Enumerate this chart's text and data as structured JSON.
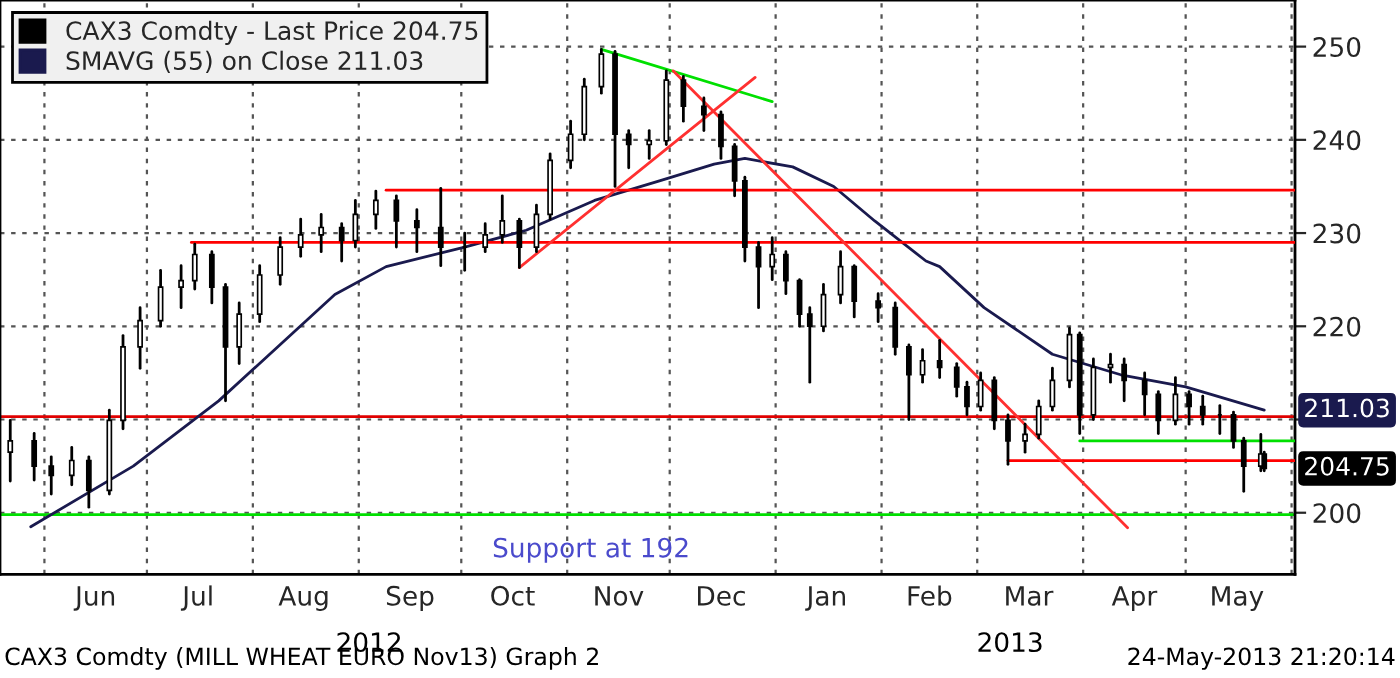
{
  "chart_data": {
    "type": "candlestick",
    "xlim": [
      "2012-05-19",
      "2013-06-02"
    ],
    "xticks": [
      {
        "value": "2012-06-01",
        "label": null
      },
      {
        "value": "2012-06-16",
        "label": "Jun"
      },
      {
        "value": "2012-07-01",
        "label": null
      },
      {
        "value": "2012-07-16",
        "label": "Jul"
      },
      {
        "value": "2012-08-01",
        "label": null
      },
      {
        "value": "2012-08-16",
        "label": "Aug"
      },
      {
        "value": "2012-09-01",
        "label": null
      },
      {
        "value": "2012-09-16",
        "label": "Sep"
      },
      {
        "value": "2012-10-01",
        "label": null
      },
      {
        "value": "2012-10-16",
        "label": "Oct"
      },
      {
        "value": "2012-11-01",
        "label": null
      },
      {
        "value": "2012-11-16",
        "label": "Nov"
      },
      {
        "value": "2012-12-01",
        "label": null
      },
      {
        "value": "2012-12-16",
        "label": "Dec"
      },
      {
        "value": "2013-01-01",
        "label": null
      },
      {
        "value": "2013-01-16",
        "label": "Jan"
      },
      {
        "value": "2013-02-01",
        "label": null
      },
      {
        "value": "2013-02-15",
        "label": "Feb"
      },
      {
        "value": "2013-03-01",
        "label": null
      },
      {
        "value": "2013-03-16",
        "label": "Mar"
      },
      {
        "value": "2013-04-01",
        "label": null
      },
      {
        "value": "2013-04-16",
        "label": "Apr"
      },
      {
        "value": "2013-05-01",
        "label": null
      },
      {
        "value": "2013-05-16",
        "label": "May"
      },
      {
        "value": "2013-06-01",
        "label": null
      }
    ],
    "ylim": [
      193.4,
      255
    ],
    "yticks": [
      200,
      {
        "value": 210,
        "label": null
      },
      220,
      230,
      240,
      250
    ],
    "grid": true,
    "legend": "top left",
    "series": [
      {
        "name": "CAX3 Comdty - Last Price 204.75",
        "color": "#000000",
        "x": [
          "2012-05-22",
          "2012-05-29",
          "2012-06-03",
          "2012-06-09",
          "2012-06-14",
          "2012-06-20",
          "2012-06-24",
          "2012-06-29",
          "2012-07-05",
          "2012-07-11",
          "2012-07-15",
          "2012-07-20",
          "2012-07-24",
          "2012-07-28",
          "2012-08-03",
          "2012-08-09",
          "2012-08-15",
          "2012-08-21",
          "2012-08-27",
          "2012-08-31",
          "2012-09-06",
          "2012-09-12",
          "2012-09-18",
          "2012-09-25",
          "2012-10-02",
          "2012-10-08",
          "2012-10-13",
          "2012-10-18",
          "2012-10-23",
          "2012-10-27",
          "2012-11-02",
          "2012-11-06",
          "2012-11-11",
          "2012-11-15",
          "2012-11-19",
          "2012-11-25",
          "2012-11-30",
          "2012-12-05",
          "2012-12-11",
          "2012-12-16",
          "2012-12-20",
          "2012-12-23",
          "2012-12-27",
          "2012-12-31",
          "2013-01-04",
          "2013-01-08",
          "2013-01-11",
          "2013-01-15",
          "2013-01-20",
          "2013-01-24",
          "2013-01-31",
          "2013-02-05",
          "2013-02-09",
          "2013-02-13",
          "2013-02-18",
          "2013-02-23",
          "2013-02-26",
          "2013-03-02",
          "2013-03-06",
          "2013-03-10",
          "2013-03-15",
          "2013-03-19",
          "2013-03-23",
          "2013-03-28",
          "2013-03-31",
          "2013-04-04",
          "2013-04-09",
          "2013-04-13",
          "2013-04-19",
          "2013-04-23",
          "2013-04-28",
          "2013-05-02",
          "2013-05-06",
          "2013-05-11",
          "2013-05-15",
          "2013-05-18",
          "2013-05-23",
          "2013-05-24"
        ],
        "ohlc": [
          [
            206.5,
            209.9,
            203.4,
            207.7
          ],
          [
            207.7,
            208.5,
            203.5,
            205.0
          ],
          [
            205.0,
            206.0,
            202.0,
            204.0
          ],
          [
            204.0,
            207.0,
            203.0,
            205.6
          ],
          [
            205.6,
            206.0,
            200.6,
            202.4
          ],
          [
            202.4,
            211.0,
            202.0,
            209.9
          ],
          [
            209.9,
            219.0,
            209.0,
            217.8
          ],
          [
            217.8,
            222.0,
            215.5,
            220.6
          ],
          [
            220.6,
            226.0,
            220.0,
            224.2
          ],
          [
            224.2,
            226.5,
            222.0,
            224.9
          ],
          [
            224.9,
            228.8,
            224.0,
            227.7
          ],
          [
            227.7,
            228.0,
            222.5,
            224.2
          ],
          [
            224.2,
            224.5,
            212.0,
            217.8
          ],
          [
            217.8,
            222.5,
            216.0,
            221.3
          ],
          [
            221.3,
            226.5,
            220.5,
            225.5
          ],
          [
            225.5,
            229.5,
            224.5,
            228.5
          ],
          [
            228.5,
            231.5,
            227.5,
            229.8
          ],
          [
            229.8,
            232.0,
            228.0,
            230.6
          ],
          [
            230.6,
            231.0,
            227.0,
            229.2
          ],
          [
            229.2,
            233.5,
            228.5,
            232.0
          ],
          [
            232.0,
            234.5,
            230.5,
            233.5
          ],
          [
            233.5,
            234.0,
            228.5,
            231.3
          ],
          [
            231.3,
            232.5,
            228.0,
            230.6
          ],
          [
            230.6,
            234.8,
            226.5,
            228.5
          ],
          [
            228.5,
            230.0,
            226.0,
            228.5
          ],
          [
            228.5,
            231.0,
            228.0,
            229.8
          ],
          [
            229.8,
            234.0,
            229.0,
            231.3
          ],
          [
            231.3,
            231.5,
            226.3,
            228.5
          ],
          [
            228.5,
            233.0,
            228.0,
            232.0
          ],
          [
            232.0,
            238.5,
            231.5,
            237.8
          ],
          [
            237.8,
            242.0,
            237.0,
            240.6
          ],
          [
            240.6,
            246.5,
            240.0,
            245.7
          ],
          [
            245.7,
            249.7,
            245.0,
            249.2
          ],
          [
            249.2,
            249.5,
            235.0,
            240.6
          ],
          [
            240.6,
            241.0,
            237.0,
            239.5
          ],
          [
            239.5,
            241.0,
            238.0,
            239.9
          ],
          [
            239.9,
            247.4,
            239.5,
            246.4
          ],
          [
            246.4,
            246.8,
            242.0,
            243.6
          ],
          [
            243.6,
            244.5,
            241.0,
            242.7
          ],
          [
            242.7,
            243.0,
            238.0,
            239.3
          ],
          [
            239.3,
            239.5,
            234.0,
            235.6
          ],
          [
            235.6,
            236.0,
            227.0,
            228.5
          ],
          [
            228.5,
            229.0,
            222.0,
            226.4
          ],
          [
            226.4,
            229.5,
            225.0,
            227.7
          ],
          [
            227.7,
            228.0,
            223.5,
            224.9
          ],
          [
            224.9,
            225.0,
            220.0,
            221.3
          ],
          [
            221.3,
            222.0,
            214.0,
            220.0
          ],
          [
            220.0,
            224.5,
            219.5,
            223.4
          ],
          [
            223.4,
            228.0,
            222.5,
            226.4
          ],
          [
            226.4,
            226.5,
            221.0,
            222.7
          ],
          [
            222.7,
            223.5,
            220.5,
            222.0
          ],
          [
            222.0,
            222.5,
            217.0,
            217.8
          ],
          [
            217.8,
            218.0,
            210.0,
            214.8
          ],
          [
            214.8,
            217.5,
            214.0,
            216.3
          ],
          [
            216.3,
            218.5,
            214.5,
            215.6
          ],
          [
            215.6,
            216.0,
            212.5,
            213.5
          ],
          [
            213.5,
            214.0,
            210.5,
            211.4
          ],
          [
            211.4,
            215.0,
            211.0,
            214.2
          ],
          [
            214.2,
            214.5,
            209.0,
            209.9
          ],
          [
            209.9,
            210.5,
            205.2,
            207.7
          ],
          [
            207.7,
            209.5,
            206.5,
            208.4
          ],
          [
            208.4,
            212.0,
            208.0,
            211.4
          ],
          [
            211.4,
            215.5,
            211.0,
            214.2
          ],
          [
            214.2,
            219.8,
            213.5,
            219.1
          ],
          [
            219.1,
            219.3,
            208.5,
            210.5
          ],
          [
            210.5,
            216.5,
            210.0,
            215.6
          ],
          [
            215.6,
            217.0,
            214.0,
            215.9
          ],
          [
            215.9,
            216.5,
            212.0,
            214.2
          ],
          [
            214.2,
            215.0,
            210.5,
            212.7
          ],
          [
            212.7,
            213.0,
            208.5,
            209.9
          ],
          [
            209.9,
            214.5,
            209.5,
            212.7
          ],
          [
            212.7,
            213.0,
            209.5,
            211.4
          ],
          [
            211.4,
            212.5,
            209.5,
            210.5
          ],
          [
            210.5,
            211.5,
            208.5,
            210.5
          ],
          [
            210.5,
            210.8,
            207.0,
            207.7
          ],
          [
            207.7,
            208.0,
            202.3,
            205.0
          ],
          [
            205.0,
            208.4,
            204.5,
            206.3
          ],
          [
            206.3,
            206.5,
            204.5,
            204.75
          ]
        ]
      },
      {
        "name": "SMAVG (55) on Close 211.03",
        "type": "line",
        "color": "#1a1a4e",
        "x": [
          "2012-05-28",
          "2012-06-27",
          "2012-07-22",
          "2012-08-25",
          "2012-09-09",
          "2012-10-02",
          "2012-10-20",
          "2012-11-09",
          "2012-11-28",
          "2012-12-14",
          "2012-12-23",
          "2013-01-06",
          "2013-01-18",
          "2013-01-30",
          "2013-02-14",
          "2013-02-18",
          "2013-03-03",
          "2013-03-23",
          "2013-04-12",
          "2013-05-01",
          "2013-05-24"
        ],
        "values": [
          198.5,
          205.0,
          212.0,
          223.4,
          226.4,
          228.5,
          230.3,
          233.5,
          235.6,
          237.4,
          238.0,
          237.1,
          235.0,
          231.3,
          227.0,
          226.4,
          222.0,
          217.0,
          214.8,
          213.5,
          211.0
        ]
      },
      {
        "type": "line",
        "color": "#ff0000",
        "x": [
          "2012-09-09",
          "2013-06-02"
        ],
        "values": [
          234.6,
          234.6
        ]
      },
      {
        "type": "line",
        "color": "#ff0000",
        "x": [
          "2012-07-14",
          "2013-06-02"
        ],
        "values": [
          229.0,
          229.0
        ]
      },
      {
        "type": "line",
        "color": "#ff0000",
        "x": [
          "2013-03-10",
          "2013-06-02"
        ],
        "values": [
          205.6,
          205.6
        ]
      },
      {
        "type": "line",
        "color": "#00e000",
        "x": [
          "2013-03-31",
          "2013-06-02"
        ],
        "values": [
          207.7,
          207.7
        ]
      },
      {
        "type": "line",
        "color": "#00e000",
        "x": [
          "2012-11-11",
          "2012-12-31"
        ],
        "values": [
          249.7,
          244.1
        ]
      },
      {
        "type": "line",
        "color": "#ff3030",
        "x": [
          "2012-10-18",
          "2012-12-26"
        ],
        "values": [
          226.3,
          246.7
        ]
      },
      {
        "type": "line",
        "color": "#ff3030",
        "x": [
          "2012-12-02",
          "2013-04-14"
        ],
        "values": [
          247.4,
          198.4
        ]
      }
    ],
    "ref_lines": [
      {
        "axis": "y",
        "value": 210.3,
        "color": "#e00000"
      },
      {
        "axis": "y",
        "value": 199.8,
        "color": "#00e000"
      }
    ],
    "annotations": [
      "204.75",
      "211.03",
      "Support at 192",
      "2012",
      "2013",
      "CAX3 Comdty (MILL WHEAT EURO Nov13) Graph 2",
      "24-May-2013 21:20:14"
    ]
  }
}
